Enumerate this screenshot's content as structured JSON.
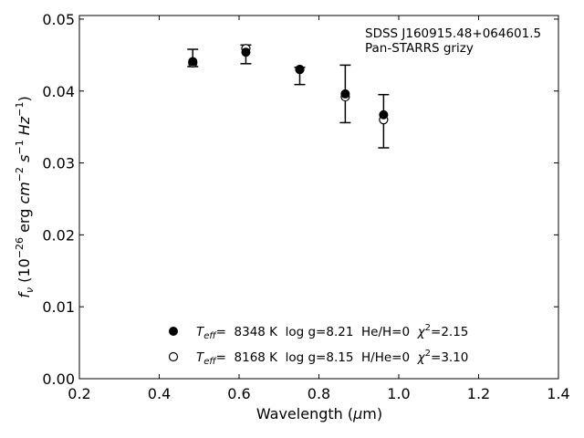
{
  "chart_data": {
    "type": "scatter",
    "xlabel": "Wavelength (μm)",
    "ylabel": "f_ν (10^-26 erg cm^-2 s^-1 Hz^-1)",
    "xlim": [
      0.2,
      1.4
    ],
    "ylim": [
      0.0,
      0.0505
    ],
    "xticks": [
      "0.2",
      "0.4",
      "0.6",
      "0.8",
      "1.0",
      "1.2",
      "1.4"
    ],
    "yticks": [
      "0.00",
      "0.01",
      "0.02",
      "0.03",
      "0.04",
      "0.05"
    ],
    "annotation": [
      "SDSS J160915.48+064601.5",
      "Pan-STARRS grizy"
    ],
    "legend_position": "lower-center",
    "observed": {
      "x": [
        0.484,
        0.617,
        0.752,
        0.866,
        0.962
      ],
      "y": [
        0.0446,
        0.0451,
        0.0421,
        0.0396,
        0.0358
      ],
      "err": [
        0.0012,
        0.0013,
        0.0012,
        0.004,
        0.0037
      ]
    },
    "series": [
      {
        "marker": "filled-circle",
        "label": {
          "teff_symbol": "T",
          "teff_sub": "eff",
          "rest": "=  8348 K  log g=8.21  He/H=0  ",
          "chi": "χ",
          "chi_sup": "2",
          "chi_rest": "=2.15"
        },
        "x": [
          0.484,
          0.617,
          0.752,
          0.866,
          0.962
        ],
        "y": [
          0.0441,
          0.0454,
          0.043,
          0.0396,
          0.0367
        ]
      },
      {
        "marker": "open-circle",
        "label": {
          "teff_symbol": "T",
          "teff_sub": "eff",
          "rest": "=  8168 K  log g=8.15  H/He=0  ",
          "chi": "χ",
          "chi_sup": "2",
          "chi_rest": "=3.10"
        },
        "x": [
          0.484,
          0.617,
          0.752,
          0.866,
          0.962
        ],
        "y": [
          0.0439,
          0.0459,
          0.043,
          0.0392,
          0.036
        ]
      }
    ]
  }
}
